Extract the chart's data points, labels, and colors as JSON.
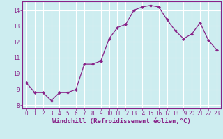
{
  "x": [
    0,
    1,
    2,
    3,
    4,
    5,
    6,
    7,
    8,
    9,
    10,
    11,
    12,
    13,
    14,
    15,
    16,
    17,
    18,
    19,
    20,
    21,
    22,
    23
  ],
  "y": [
    9.4,
    8.8,
    8.8,
    8.3,
    8.8,
    8.8,
    9.0,
    10.6,
    10.6,
    10.8,
    12.2,
    12.9,
    13.1,
    14.0,
    14.2,
    14.3,
    14.2,
    13.4,
    12.7,
    12.2,
    12.5,
    13.2,
    12.1,
    11.5
  ],
  "line_color": "#882288",
  "marker": "D",
  "markersize": 2.0,
  "linewidth": 0.9,
  "xlabel": "Windchill (Refroidissement éolien,°C)",
  "xlabel_fontsize": 6.5,
  "bg_color": "#cdedf0",
  "grid_color": "#ffffff",
  "xlim": [
    -0.5,
    23.5
  ],
  "ylim": [
    7.8,
    14.55
  ],
  "yticks": [
    8,
    9,
    10,
    11,
    12,
    13,
    14
  ],
  "xticks": [
    0,
    1,
    2,
    3,
    4,
    5,
    6,
    7,
    8,
    9,
    10,
    11,
    12,
    13,
    14,
    15,
    16,
    17,
    18,
    19,
    20,
    21,
    22,
    23
  ],
  "tick_fontsize": 5.5,
  "tick_color": "#882288",
  "xlabel_color": "#882288",
  "spine_color": "#882288"
}
